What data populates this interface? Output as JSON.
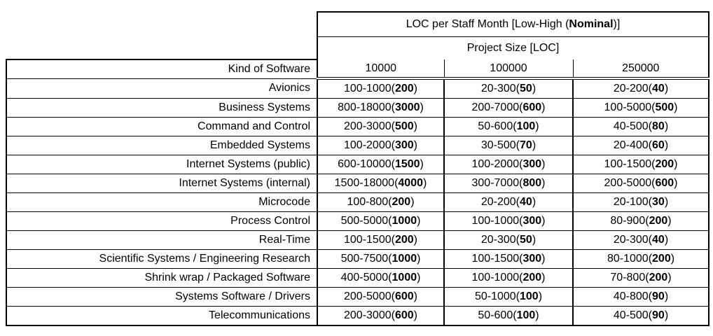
{
  "table": {
    "title": {
      "prefix": "LOC per Staff Month [Low-High (",
      "bold": "Nominal",
      "suffix": ")]"
    },
    "subtitle": "Project Size [LOC]",
    "corner_label": "Kind of Software",
    "size_columns": [
      "10000",
      "100000",
      "250000"
    ],
    "rows": [
      {
        "label": "Avionics",
        "values": [
          "100-1000(200)",
          "20-300(50)",
          "20-200(40)"
        ]
      },
      {
        "label": "Business Systems",
        "values": [
          "800-18000(3000)",
          "200-7000(600)",
          "100-5000(500)"
        ]
      },
      {
        "label": "Command and Control",
        "values": [
          "200-3000(500)",
          "50-600(100)",
          "40-500(80)"
        ]
      },
      {
        "label": "Embedded Systems",
        "values": [
          "100-2000(300)",
          "30-500(70)",
          "20-400(60)"
        ]
      },
      {
        "label": "Internet Systems (public)",
        "values": [
          "600-10000(1500)",
          "100-2000(300)",
          "100-1500(200)"
        ]
      },
      {
        "label": "Internet Systems (internal)",
        "values": [
          "1500-18000(4000)",
          "300-7000(800)",
          "200-5000(600)"
        ]
      },
      {
        "label": "Microcode",
        "values": [
          "100-800(200)",
          "20-200(40)",
          "20-100(30)"
        ]
      },
      {
        "label": "Process Control",
        "values": [
          "500-5000(1000)",
          "100-1000(300)",
          "80-900(200)"
        ]
      },
      {
        "label": "Real-Time",
        "values": [
          "100-1500(200)",
          "20-300(50)",
          "20-300(40)"
        ]
      },
      {
        "label": "Scientific Systems / Engineering Research",
        "values": [
          "500-7500(1000)",
          "100-1500(300)",
          "80-1000(200)"
        ]
      },
      {
        "label": "Shrink wrap / Packaged Software",
        "values": [
          "400-5000(1000)",
          "100-1000(200)",
          "70-800(200)"
        ]
      },
      {
        "label": "Systems Software / Drivers",
        "values": [
          "200-5000(600)",
          "50-1000(100)",
          "40-800(90)"
        ]
      },
      {
        "label": "Telecommunications",
        "values": [
          "200-3000(600)",
          "50-600(100)",
          "40-500(90)"
        ]
      }
    ]
  },
  "colors": {
    "background": "#ffffff",
    "text": "#000000",
    "border": "#000000"
  }
}
